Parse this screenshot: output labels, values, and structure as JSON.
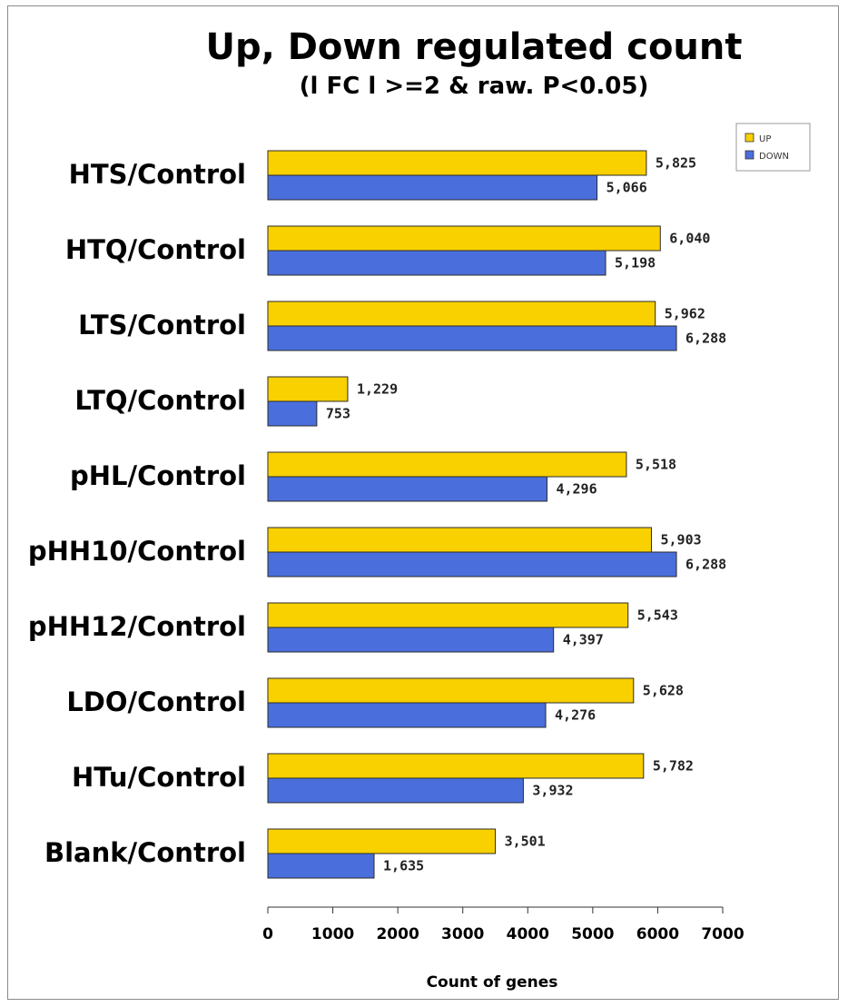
{
  "chart_data": {
    "type": "bar",
    "orientation": "horizontal",
    "title": "Up, Down regulated count",
    "subtitle": "(l FC l >=2 & raw. P<0.05)",
    "xlabel": "Count of genes",
    "ylabel": "",
    "xlim": [
      0,
      7000
    ],
    "x_ticks": [
      "0",
      "1000",
      "2000",
      "3000",
      "4000",
      "5000",
      "6000",
      "7000"
    ],
    "grid": false,
    "legend_position": "top-right",
    "categories": [
      "HTS/Control",
      "HTQ/Control",
      "LTS/Control",
      "LTQ/Control",
      "pHL/Control",
      "pHH10/Control",
      "pHH12/Control",
      "LDO/Control",
      "HTu/Control",
      "Blank/Control"
    ],
    "series": [
      {
        "name": "UP",
        "color": "#f9d000",
        "values": [
          5825,
          6040,
          5962,
          1229,
          5518,
          5903,
          5543,
          5628,
          5782,
          3501
        ],
        "labels": [
          "5,825",
          "6,040",
          "5,962",
          "1,229",
          "5,518",
          "5,903",
          "5,543",
          "5,628",
          "5,782",
          "3,501"
        ]
      },
      {
        "name": "DOWN",
        "color": "#4a6fdc",
        "values": [
          5066,
          5198,
          6288,
          753,
          4296,
          6288,
          4397,
          4276,
          3932,
          1635
        ],
        "labels": [
          "5,066",
          "5,198",
          "6,288",
          "753",
          "4,296",
          "6,288",
          "4,397",
          "4,276",
          "3,932",
          "1,635"
        ]
      }
    ]
  }
}
